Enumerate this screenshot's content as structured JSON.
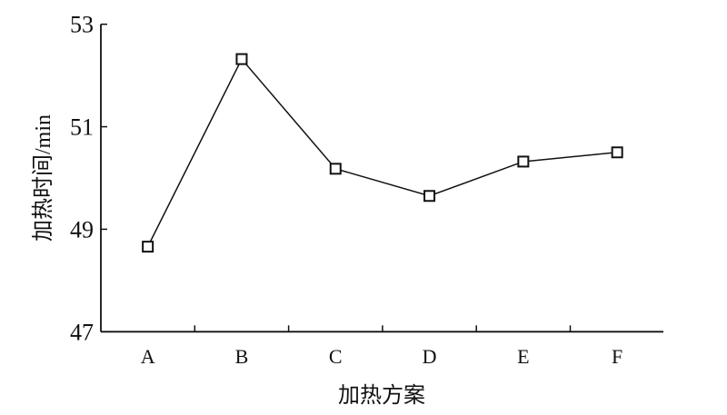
{
  "chart_data": {
    "type": "line",
    "title": "",
    "xlabel": "加热方案",
    "ylabel": "加热时间/min",
    "categories": [
      "A",
      "B",
      "C",
      "D",
      "E",
      "F"
    ],
    "values": [
      48.66,
      52.32,
      50.18,
      49.65,
      50.32,
      50.5
    ],
    "ylim": [
      47,
      53
    ],
    "yticks": [
      47,
      49,
      51,
      53
    ],
    "grid": false,
    "marker": "open-square",
    "line_color": "#111111"
  }
}
